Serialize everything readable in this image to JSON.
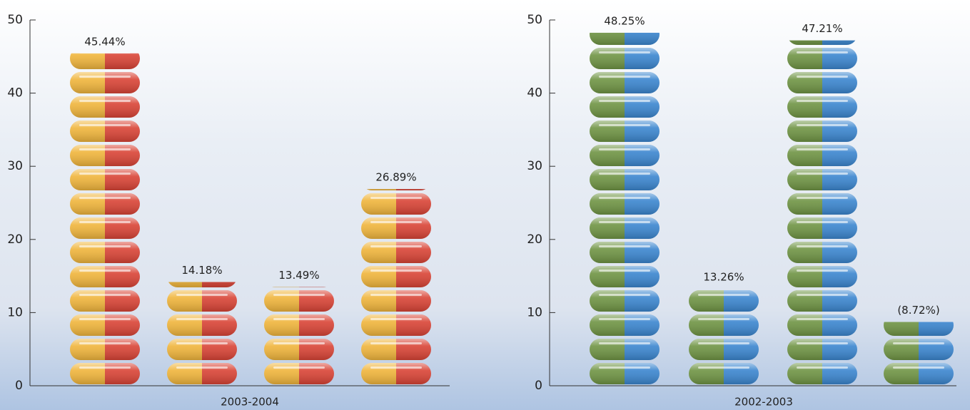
{
  "charts": [
    {
      "chart_data": {
        "type": "bar",
        "categories": [
          null,
          null,
          null,
          null
        ],
        "values": [
          45.44,
          14.18,
          13.49,
          26.89
        ],
        "value_labels": [
          "45.44%",
          "14.18%",
          "13.49%",
          "26.89%"
        ],
        "colors": [
          "#f0b53c",
          "#d94436"
        ],
        "x_label": "2003-2004",
        "ylim": [
          0,
          50
        ],
        "yticks": [
          0,
          10,
          20,
          30,
          40,
          50
        ]
      }
    },
    {
      "chart_data": {
        "type": "bar",
        "categories": [
          null,
          null,
          null,
          null
        ],
        "values": [
          48.25,
          13.26,
          47.21,
          8.72
        ],
        "value_labels": [
          "48.25%",
          "13.26%",
          "47.21%",
          "(8.72%)"
        ],
        "colors": [
          "#6f9444",
          "#3b86cf"
        ],
        "x_label": "2002-2003",
        "ylim": [
          0,
          50
        ],
        "yticks": [
          0,
          10,
          20,
          30,
          40,
          50
        ]
      }
    }
  ]
}
